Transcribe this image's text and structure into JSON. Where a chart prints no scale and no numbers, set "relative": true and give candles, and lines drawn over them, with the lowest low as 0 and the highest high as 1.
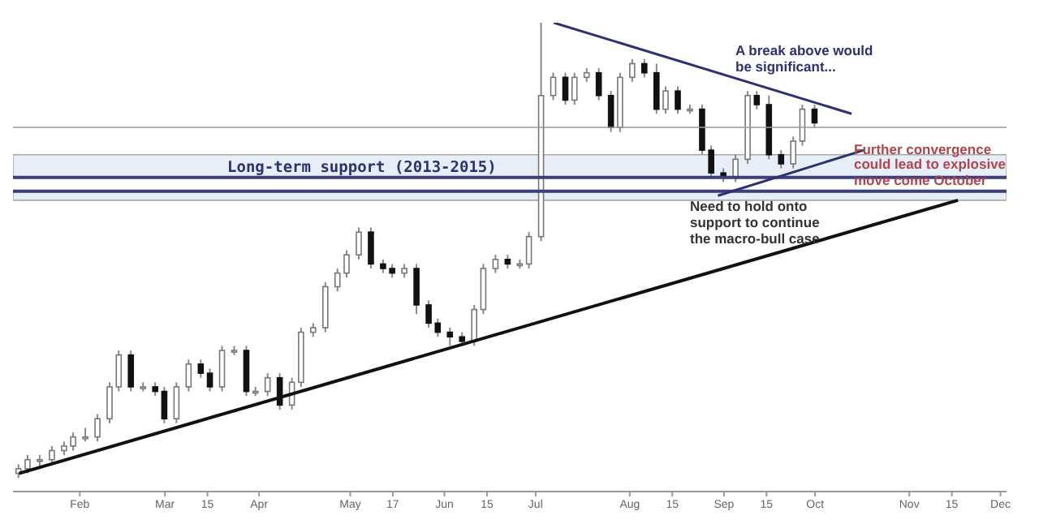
{
  "chart_data": {
    "type": "candlestick",
    "relative": true,
    "x": [
      "--01-12",
      "--01-15",
      "--01-19",
      "--01-23",
      "--01-27",
      "--01-30",
      "--02-03",
      "--02-07",
      "--02-11",
      "--02-14",
      "--02-18",
      "--02-22",
      "--02-26",
      "--03-01",
      "--03-05",
      "--03-09",
      "--03-13",
      "--03-16",
      "--03-20",
      "--03-24",
      "--03-28",
      "--03-31",
      "--04-04",
      "--04-08",
      "--04-12",
      "--04-15",
      "--04-19",
      "--04-23",
      "--04-27",
      "--04-30",
      "--05-04",
      "--05-08",
      "--05-12",
      "--05-15",
      "--05-19",
      "--05-23",
      "--05-27",
      "--05-30",
      "--06-03",
      "--06-07",
      "--06-11",
      "--06-14",
      "--06-18",
      "--06-22",
      "--06-26",
      "--06-29",
      "--07-03",
      "--07-07",
      "--07-11",
      "--07-14",
      "--07-18",
      "--07-22",
      "--07-26",
      "--07-29",
      "--08-02",
      "--08-06",
      "--08-10",
      "--08-13",
      "--08-17",
      "--08-21",
      "--08-25",
      "--08-28",
      "--09-01",
      "--09-05",
      "--09-09",
      "--09-12",
      "--09-16",
      "--09-20",
      "--09-24",
      "--09-27",
      "--10-01"
    ],
    "ohlc": [
      [
        0.01,
        0.03,
        0,
        0.02
      ],
      [
        0.02,
        0.05,
        0.01,
        0.04
      ],
      [
        0.04,
        0.05,
        0.02,
        0.04
      ],
      [
        0.04,
        0.07,
        0.03,
        0.06
      ],
      [
        0.06,
        0.08,
        0.05,
        0.07
      ],
      [
        0.07,
        0.1,
        0.06,
        0.09
      ],
      [
        0.09,
        0.11,
        0.08,
        0.09
      ],
      [
        0.09,
        0.14,
        0.08,
        0.13
      ],
      [
        0.13,
        0.21,
        0.12,
        0.2
      ],
      [
        0.2,
        0.28,
        0.19,
        0.27
      ],
      [
        0.27,
        0.28,
        0.19,
        0.2
      ],
      [
        0.2,
        0.21,
        0.19,
        0.2
      ],
      [
        0.2,
        0.21,
        0.18,
        0.19
      ],
      [
        0.19,
        0.2,
        0.12,
        0.13
      ],
      [
        0.13,
        0.21,
        0.12,
        0.2
      ],
      [
        0.2,
        0.26,
        0.19,
        0.25
      ],
      [
        0.25,
        0.26,
        0.22,
        0.23
      ],
      [
        0.23,
        0.24,
        0.19,
        0.2
      ],
      [
        0.2,
        0.29,
        0.19,
        0.28
      ],
      [
        0.28,
        0.29,
        0.27,
        0.28
      ],
      [
        0.28,
        0.29,
        0.18,
        0.19
      ],
      [
        0.19,
        0.2,
        0.18,
        0.19
      ],
      [
        0.19,
        0.23,
        0.18,
        0.22
      ],
      [
        0.22,
        0.23,
        0.15,
        0.16
      ],
      [
        0.16,
        0.22,
        0.15,
        0.21
      ],
      [
        0.21,
        0.33,
        0.2,
        0.32
      ],
      [
        0.32,
        0.34,
        0.31,
        0.33
      ],
      [
        0.33,
        0.43,
        0.32,
        0.42
      ],
      [
        0.42,
        0.46,
        0.41,
        0.45
      ],
      [
        0.45,
        0.5,
        0.44,
        0.49
      ],
      [
        0.49,
        0.55,
        0.48,
        0.54
      ],
      [
        0.54,
        0.55,
        0.46,
        0.47
      ],
      [
        0.47,
        0.48,
        0.45,
        0.46
      ],
      [
        0.46,
        0.47,
        0.44,
        0.45
      ],
      [
        0.45,
        0.47,
        0.44,
        0.46
      ],
      [
        0.46,
        0.47,
        0.36,
        0.38
      ],
      [
        0.38,
        0.39,
        0.33,
        0.34
      ],
      [
        0.34,
        0.35,
        0.31,
        0.32
      ],
      [
        0.32,
        0.33,
        0.29,
        0.31
      ],
      [
        0.31,
        0.32,
        0.29,
        0.3
      ],
      [
        0.3,
        0.38,
        0.29,
        0.37
      ],
      [
        0.37,
        0.47,
        0.36,
        0.46
      ],
      [
        0.46,
        0.49,
        0.45,
        0.48
      ],
      [
        0.48,
        0.49,
        0.46,
        0.47
      ],
      [
        0.47,
        0.48,
        0.46,
        0.47
      ],
      [
        0.47,
        0.54,
        0.46,
        0.53
      ],
      [
        0.53,
        1,
        0.52,
        0.84
      ],
      [
        0.84,
        0.89,
        0.83,
        0.88
      ],
      [
        0.88,
        0.89,
        0.82,
        0.83
      ],
      [
        0.83,
        0.89,
        0.82,
        0.88
      ],
      [
        0.88,
        0.9,
        0.87,
        0.89
      ],
      [
        0.89,
        0.9,
        0.83,
        0.84
      ],
      [
        0.84,
        0.85,
        0.76,
        0.77
      ],
      [
        0.77,
        0.89,
        0.76,
        0.88
      ],
      [
        0.88,
        0.92,
        0.87,
        0.91
      ],
      [
        0.91,
        0.92,
        0.88,
        0.89
      ],
      [
        0.89,
        0.91,
        0.8,
        0.81
      ],
      [
        0.81,
        0.86,
        0.8,
        0.85
      ],
      [
        0.85,
        0.86,
        0.8,
        0.81
      ],
      [
        0.81,
        0.82,
        0.8,
        0.81
      ],
      [
        0.81,
        0.82,
        0.71,
        0.72
      ],
      [
        0.72,
        0.73,
        0.66,
        0.67
      ],
      [
        0.67,
        0.68,
        0.65,
        0.66
      ],
      [
        0.66,
        0.71,
        0.65,
        0.7
      ],
      [
        0.7,
        0.85,
        0.69,
        0.84
      ],
      [
        0.84,
        0.85,
        0.81,
        0.82
      ],
      [
        0.82,
        0.84,
        0.7,
        0.71
      ],
      [
        0.71,
        0.72,
        0.68,
        0.69
      ],
      [
        0.69,
        0.75,
        0.68,
        0.74
      ],
      [
        0.74,
        0.82,
        0.73,
        0.81
      ],
      [
        0.81,
        0.82,
        0.77,
        0.78
      ]
    ],
    "series": [
      {
        "type": "line",
        "color": "#111111",
        "x": [
          "--01-12",
          "--11-17"
        ],
        "values": [
          0.01,
          0.61
        ]
      },
      {
        "type": "line",
        "color": "#2e3170",
        "x": [
          "--07-07",
          "--10-13"
        ],
        "values": [
          1.0,
          0.8
        ]
      },
      {
        "type": "line",
        "color": "#2e3170",
        "x": [
          "--08-30",
          "--10-17"
        ],
        "values": [
          0.62,
          0.72
        ]
      }
    ],
    "xlim": [
      "--01-10",
      "--12-03"
    ],
    "xticks": [
      {
        "value": "--02-01",
        "label": "Feb"
      },
      {
        "value": "--03-01",
        "label": "Mar"
      },
      {
        "value": "--03-15",
        "label": "15"
      },
      {
        "value": "--04-01",
        "label": "Apr"
      },
      {
        "value": "--05-01",
        "label": "May"
      },
      {
        "value": "--05-15",
        "label": "17"
      },
      {
        "value": "--06-01",
        "label": "Jun"
      },
      {
        "value": "--06-15",
        "label": "15"
      },
      {
        "value": "--07-01",
        "label": "Jul"
      },
      {
        "value": "--08-01",
        "label": "Aug"
      },
      {
        "value": "--08-15",
        "label": "15"
      },
      {
        "value": "--09-01",
        "label": "Sep"
      },
      {
        "value": "--09-15",
        "label": "15"
      },
      {
        "value": "--10-01",
        "label": "Oct"
      },
      {
        "value": "--11-01",
        "label": "Nov"
      },
      {
        "value": "--11-15",
        "label": "15"
      },
      {
        "value": "--12-01",
        "label": "Dec"
      }
    ],
    "bands": [
      {
        "axis": "y",
        "from": 0.66,
        "to": 0.71,
        "color": "#e6eef8",
        "label": "Long-term support (2013-2015)"
      },
      {
        "axis": "y",
        "from": 0.61,
        "to": 0.63,
        "color": "#e6eef8"
      }
    ],
    "ref_lines": [
      {
        "axis": "y",
        "value": 0.77,
        "color": "#9a9a9a"
      },
      {
        "axis": "y",
        "value": 0.66,
        "color": "#3b3f7a"
      },
      {
        "axis": "y",
        "value": 0.63,
        "color": "#3b3f7a"
      }
    ],
    "annotations": [
      "A break above would be significant...",
      "Further convergence could lead to explosive move come October",
      "Need to hold onto support to continue the macro-bull case"
    ]
  }
}
